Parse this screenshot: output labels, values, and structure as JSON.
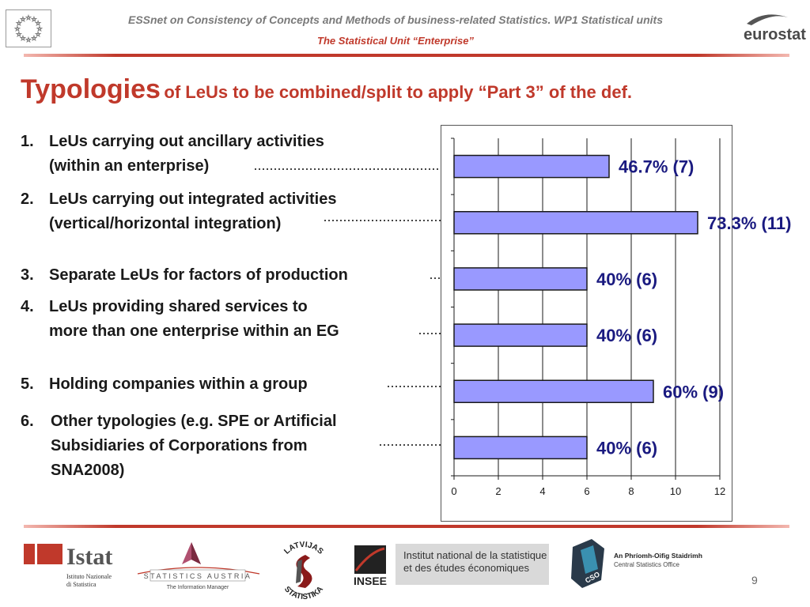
{
  "header": {
    "line1": "ESSnet on Consistency of Concepts and Methods of business-related Statistics. WP1 Statistical units",
    "line2": "The Statistical Unit “Enterprise”",
    "eurostat_logo_text": "eurostat"
  },
  "title": {
    "main": "Typologies",
    "rest": "of LeUs to be combined/split to apply “Part 3” of the def."
  },
  "items": [
    {
      "num": "1.",
      "lines": [
        "LeUs carrying out ancillary activities",
        "(within an enterprise)"
      ]
    },
    {
      "num": "2.",
      "lines": [
        "LeUs carrying out integrated activities",
        "(vertical/horizontal integration)"
      ]
    },
    {
      "num": "3.",
      "lines": [
        "Separate LeUs for factors of production"
      ]
    },
    {
      "num": "4.",
      "lines": [
        "LeUs providing shared services to",
        "more than one enterprise within an EG"
      ]
    },
    {
      "num": "5.",
      "lines": [
        "Holding companies within a group"
      ]
    },
    {
      "num": "6.",
      "lines": [
        "Other typologies (e.g. SPE or Artificial",
        "Subsidiaries of Corporations from",
        "SNA2008)"
      ]
    }
  ],
  "chart_data": {
    "type": "bar",
    "orientation": "horizontal",
    "categories": [
      "1",
      "2",
      "3",
      "4",
      "5",
      "6"
    ],
    "values": [
      7,
      11,
      6,
      6,
      9,
      6
    ],
    "data_labels": [
      "46.7% (7)",
      "73.3% (11)",
      "40% (6)",
      "40% (6)",
      "60% (9)",
      "40% (6)"
    ],
    "xlim": [
      0,
      12
    ],
    "xticks": [
      "0",
      "2",
      "4",
      "6",
      "8",
      "10",
      "12"
    ],
    "grid": true,
    "bar_color": "#9999ff",
    "bar_edge_color": "#1a1a1a",
    "label_color": "#1a1a80"
  },
  "footer": {
    "istat_text": "Istat",
    "istat_subtext": [
      "Istituto Nazionale",
      "di Statistica"
    ],
    "stat_austria_text": "STATISTICS AUSTRIA",
    "stat_austria_tagline": "The Information Manager",
    "latvia_top_text": "LATVIJAS",
    "latvia_bottom_text": "STATISTIKA",
    "insee_text": "INSEE",
    "insee_full": [
      "Institut national de la statistique",
      "et des études économiques"
    ],
    "cso_irish": "An Phríomh-Oifig Staidrimh",
    "cso_english": "Central Statistics Office",
    "cso_abbr": "CSO",
    "page_number": "9"
  },
  "colors": {
    "accent": "#c0392b",
    "header_grey": "#7a7a7a"
  }
}
